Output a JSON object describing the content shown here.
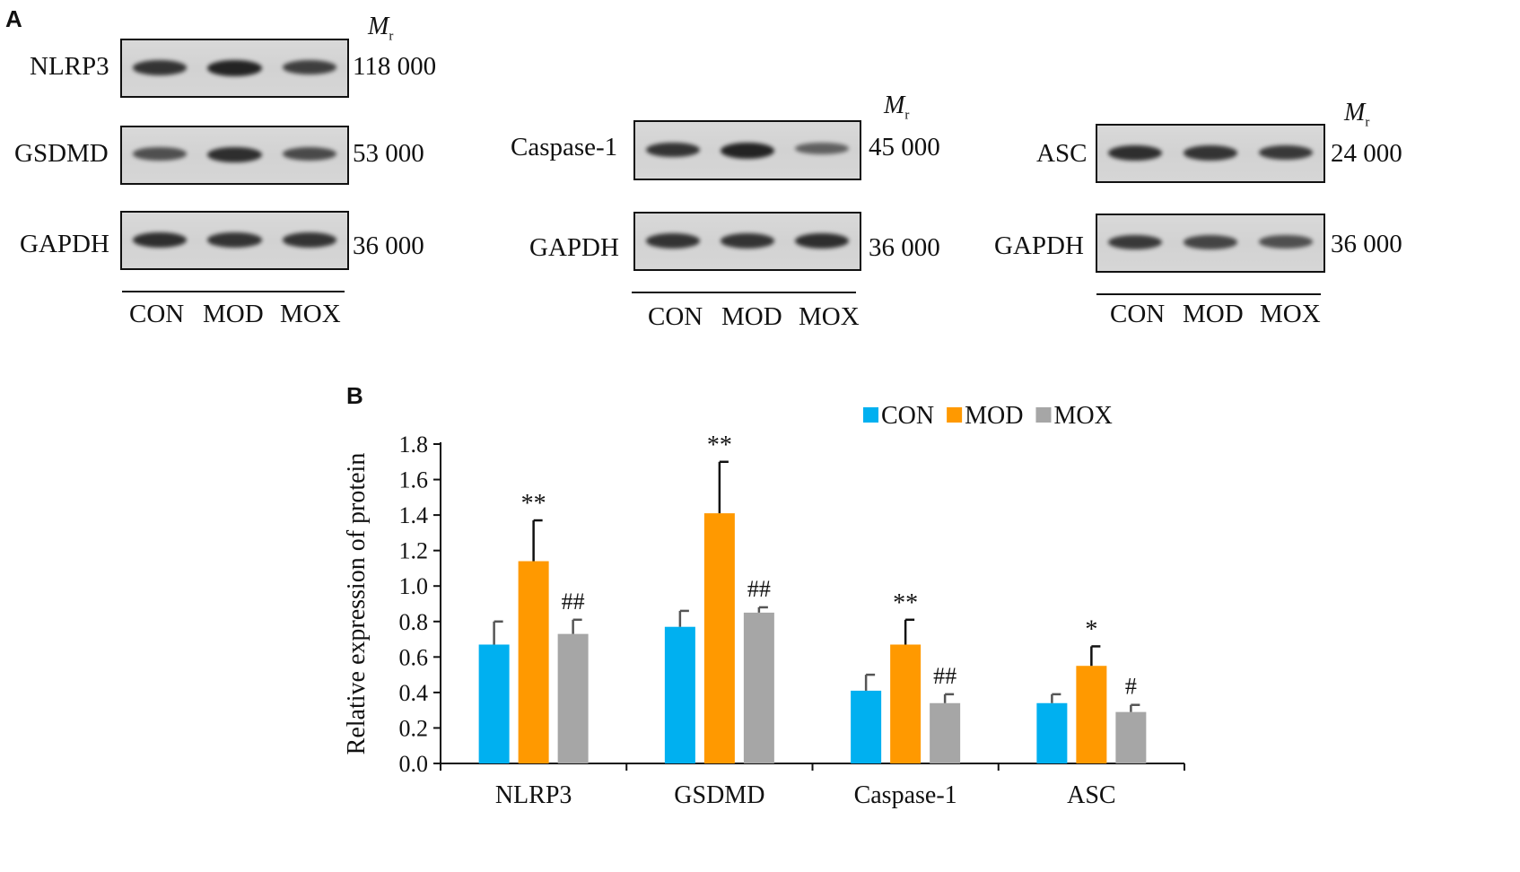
{
  "panel_a": {
    "letter": "A",
    "mr_label": "M",
    "mr_sub": "r",
    "lanes": [
      "CON",
      "MOD",
      "MOX"
    ],
    "groups": [
      {
        "blots": [
          {
            "label": "NLRP3",
            "mw": "118 000",
            "intensity": [
              0.85,
              1.0,
              0.75
            ]
          },
          {
            "label": "GSDMD",
            "mw": "53 000",
            "intensity": [
              0.6,
              0.9,
              0.65
            ]
          },
          {
            "label": "GAPDH",
            "mw": "36 000",
            "intensity": [
              0.9,
              0.85,
              0.85
            ]
          }
        ]
      },
      {
        "blots": [
          {
            "label": "Caspase-1",
            "mw": "45 000",
            "intensity": [
              0.85,
              1.0,
              0.45
            ]
          },
          {
            "label": "GAPDH",
            "mw": "36 000",
            "intensity": [
              0.85,
              0.85,
              0.9
            ]
          }
        ]
      },
      {
        "blots": [
          {
            "label": "ASC",
            "mw": "24 000",
            "intensity": [
              0.9,
              0.85,
              0.8
            ]
          },
          {
            "label": "GAPDH",
            "mw": "36 000",
            "intensity": [
              0.8,
              0.7,
              0.6
            ]
          }
        ]
      }
    ]
  },
  "chart_data": {
    "panel_letter": "B",
    "type": "bar",
    "categories": [
      "NLRP3",
      "GSDMD",
      "Caspase-1",
      "ASC"
    ],
    "ylabel": "Relative expression of protein",
    "ylim": [
      0,
      1.8
    ],
    "yticks": [
      "0.0",
      "0.2",
      "0.4",
      "0.6",
      "0.8",
      "1.0",
      "1.2",
      "1.4",
      "1.6",
      "1.8"
    ],
    "legend_position": "top-right",
    "series": [
      {
        "name": "CON",
        "color": "#00b0f0",
        "values": [
          0.67,
          0.77,
          0.41,
          0.34
        ],
        "errors": [
          0.13,
          0.09,
          0.09,
          0.05
        ],
        "marks": [
          "",
          "",
          "",
          ""
        ]
      },
      {
        "name": "MOD",
        "color": "#ff9900",
        "values": [
          1.14,
          1.41,
          0.67,
          0.55
        ],
        "errors": [
          0.23,
          0.29,
          0.14,
          0.11
        ],
        "marks": [
          "**",
          "**",
          "**",
          "*"
        ]
      },
      {
        "name": "MOX",
        "color": "#a6a6a6",
        "values": [
          0.73,
          0.85,
          0.34,
          0.29
        ],
        "errors": [
          0.08,
          0.03,
          0.05,
          0.04
        ],
        "marks": [
          "##",
          "##",
          "##",
          "#"
        ]
      }
    ]
  }
}
